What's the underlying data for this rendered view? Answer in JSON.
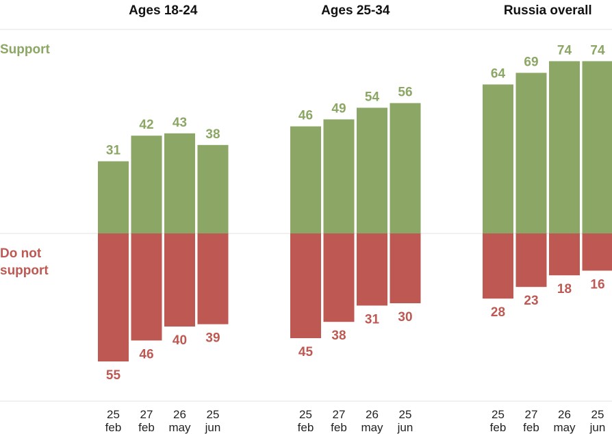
{
  "colors": {
    "support": "#8BA665",
    "oppose": "#BD5852",
    "grid": "#e2e2e2",
    "text": "#111111"
  },
  "legend": {
    "support": "Support",
    "oppose_line1": "Do not",
    "oppose_line2": "support"
  },
  "chart_data": {
    "type": "bar",
    "stacking": "diverging",
    "grid": true,
    "series_names": [
      "Support",
      "Do not support"
    ],
    "ylim": [
      -60,
      80
    ],
    "panels": [
      {
        "title": "Ages 18-24",
        "categories": [
          [
            "25",
            "feb"
          ],
          [
            "27",
            "feb"
          ],
          [
            "26",
            "may"
          ],
          [
            "25",
            "jun"
          ]
        ],
        "support": [
          31,
          42,
          43,
          38
        ],
        "oppose": [
          55,
          46,
          40,
          39
        ]
      },
      {
        "title": "Ages 25-34",
        "categories": [
          [
            "25",
            "feb"
          ],
          [
            "27",
            "feb"
          ],
          [
            "26",
            "may"
          ],
          [
            "25",
            "jun"
          ]
        ],
        "support": [
          46,
          49,
          54,
          56
        ],
        "oppose": [
          45,
          38,
          31,
          30
        ]
      },
      {
        "title": "Russia overall",
        "categories": [
          [
            "25",
            "feb"
          ],
          [
            "27",
            "feb"
          ],
          [
            "26",
            "may"
          ],
          [
            "25",
            "jun"
          ]
        ],
        "support": [
          64,
          69,
          74,
          74
        ],
        "oppose": [
          28,
          23,
          18,
          16
        ]
      }
    ]
  }
}
